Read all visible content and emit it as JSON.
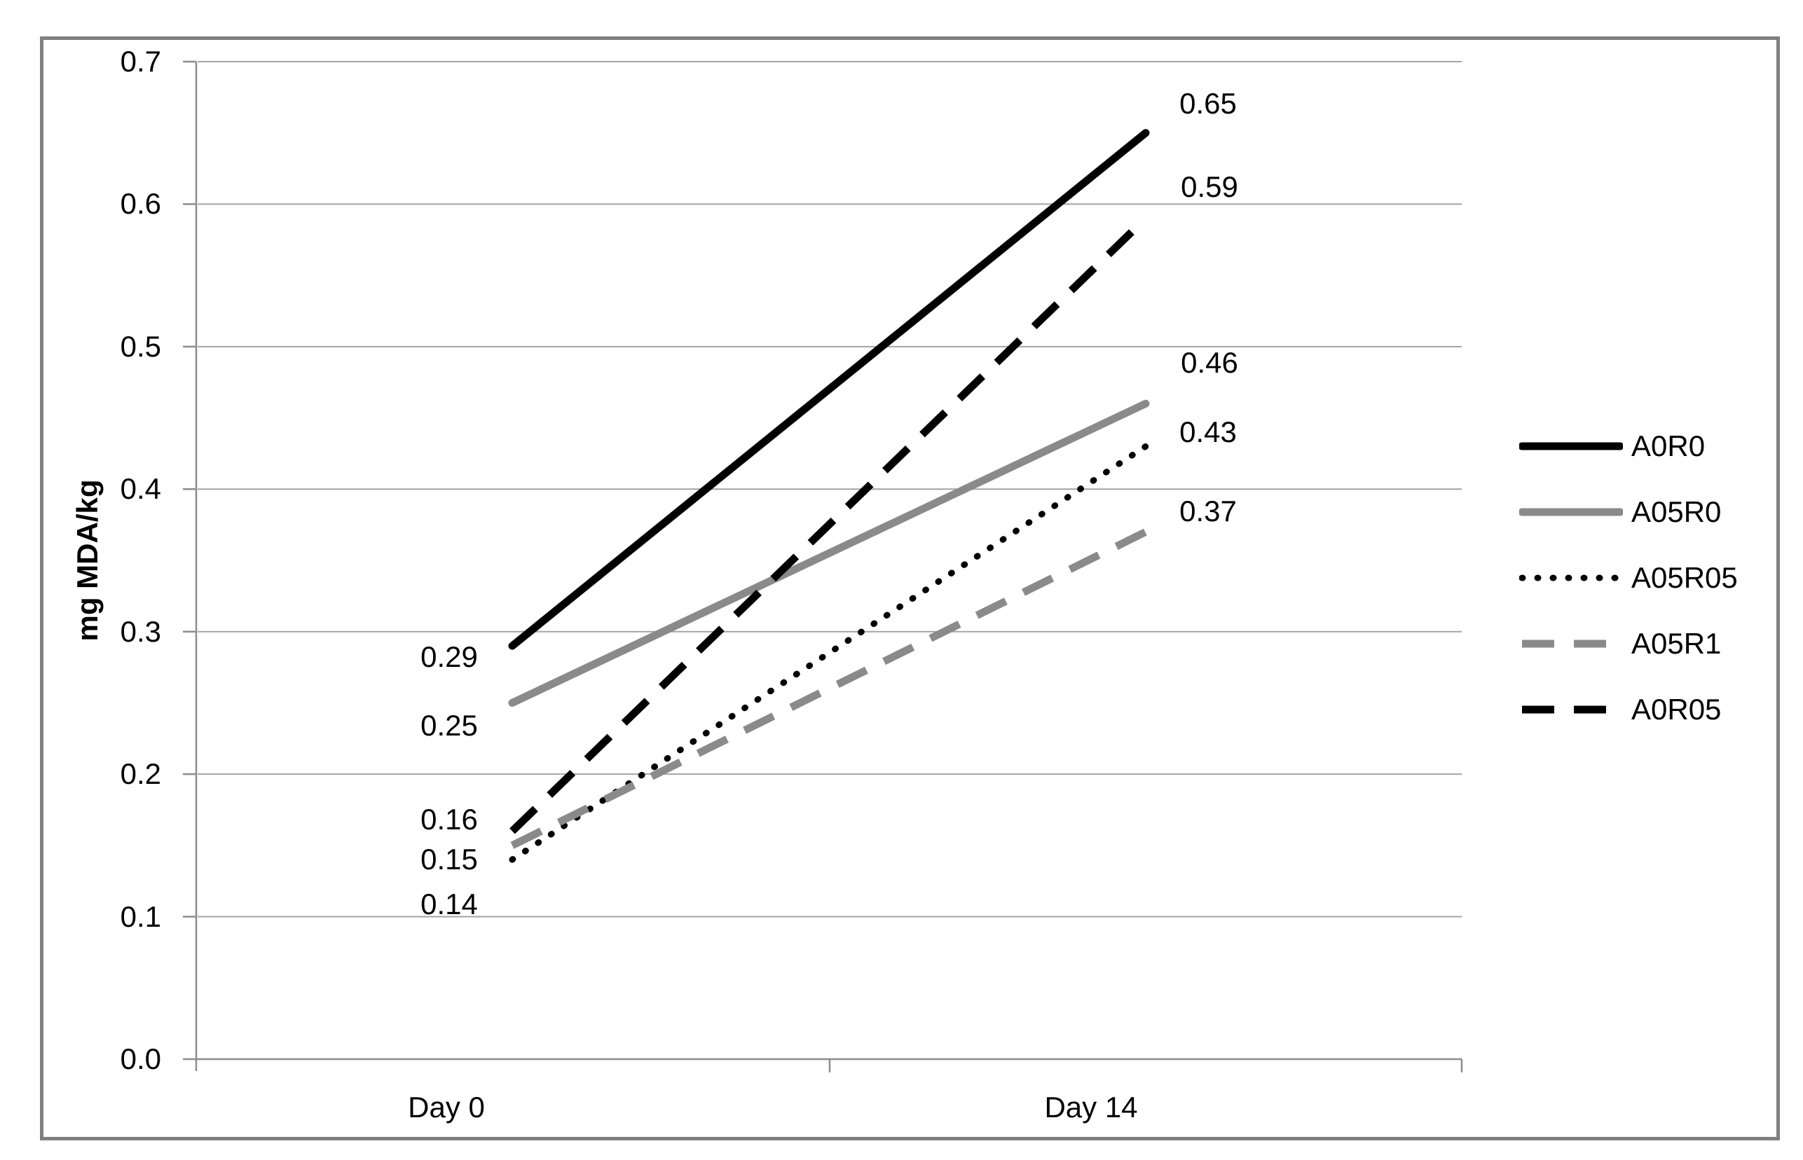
{
  "figure": {
    "background_color": "#ffffff",
    "border_color": "#808080"
  },
  "chart_data": {
    "type": "line",
    "title": "",
    "xlabel": "",
    "ylabel": "mg MDA/kg",
    "categories": [
      "Day 0",
      "Day 14"
    ],
    "yticks": [
      "0.0",
      "0.1",
      "0.2",
      "0.3",
      "0.4",
      "0.5",
      "0.6",
      "0.7"
    ],
    "ylim": [
      0.0,
      0.7
    ],
    "grid": true,
    "legend_position": "right",
    "colors": {
      "black_series": "#000000",
      "gray_series": "#8a8a8a",
      "gridline": "#a3a3a3",
      "axis": "#8c8c8c"
    },
    "series": [
      {
        "name": "A0R0",
        "style": "solid",
        "color": "#000000",
        "values": [
          0.29,
          0.65
        ]
      },
      {
        "name": "A05R0",
        "style": "solid",
        "color": "#8a8a8a",
        "values": [
          0.25,
          0.46
        ]
      },
      {
        "name": "A05R05",
        "style": "dotted",
        "color": "#000000",
        "values": [
          0.14,
          0.43
        ]
      },
      {
        "name": "A05R1",
        "style": "dashed",
        "color": "#8a8a8a",
        "values": [
          0.15,
          0.37
        ]
      },
      {
        "name": "A0R05",
        "style": "dashed",
        "color": "#000000",
        "values": [
          0.16,
          0.59
        ]
      }
    ]
  }
}
